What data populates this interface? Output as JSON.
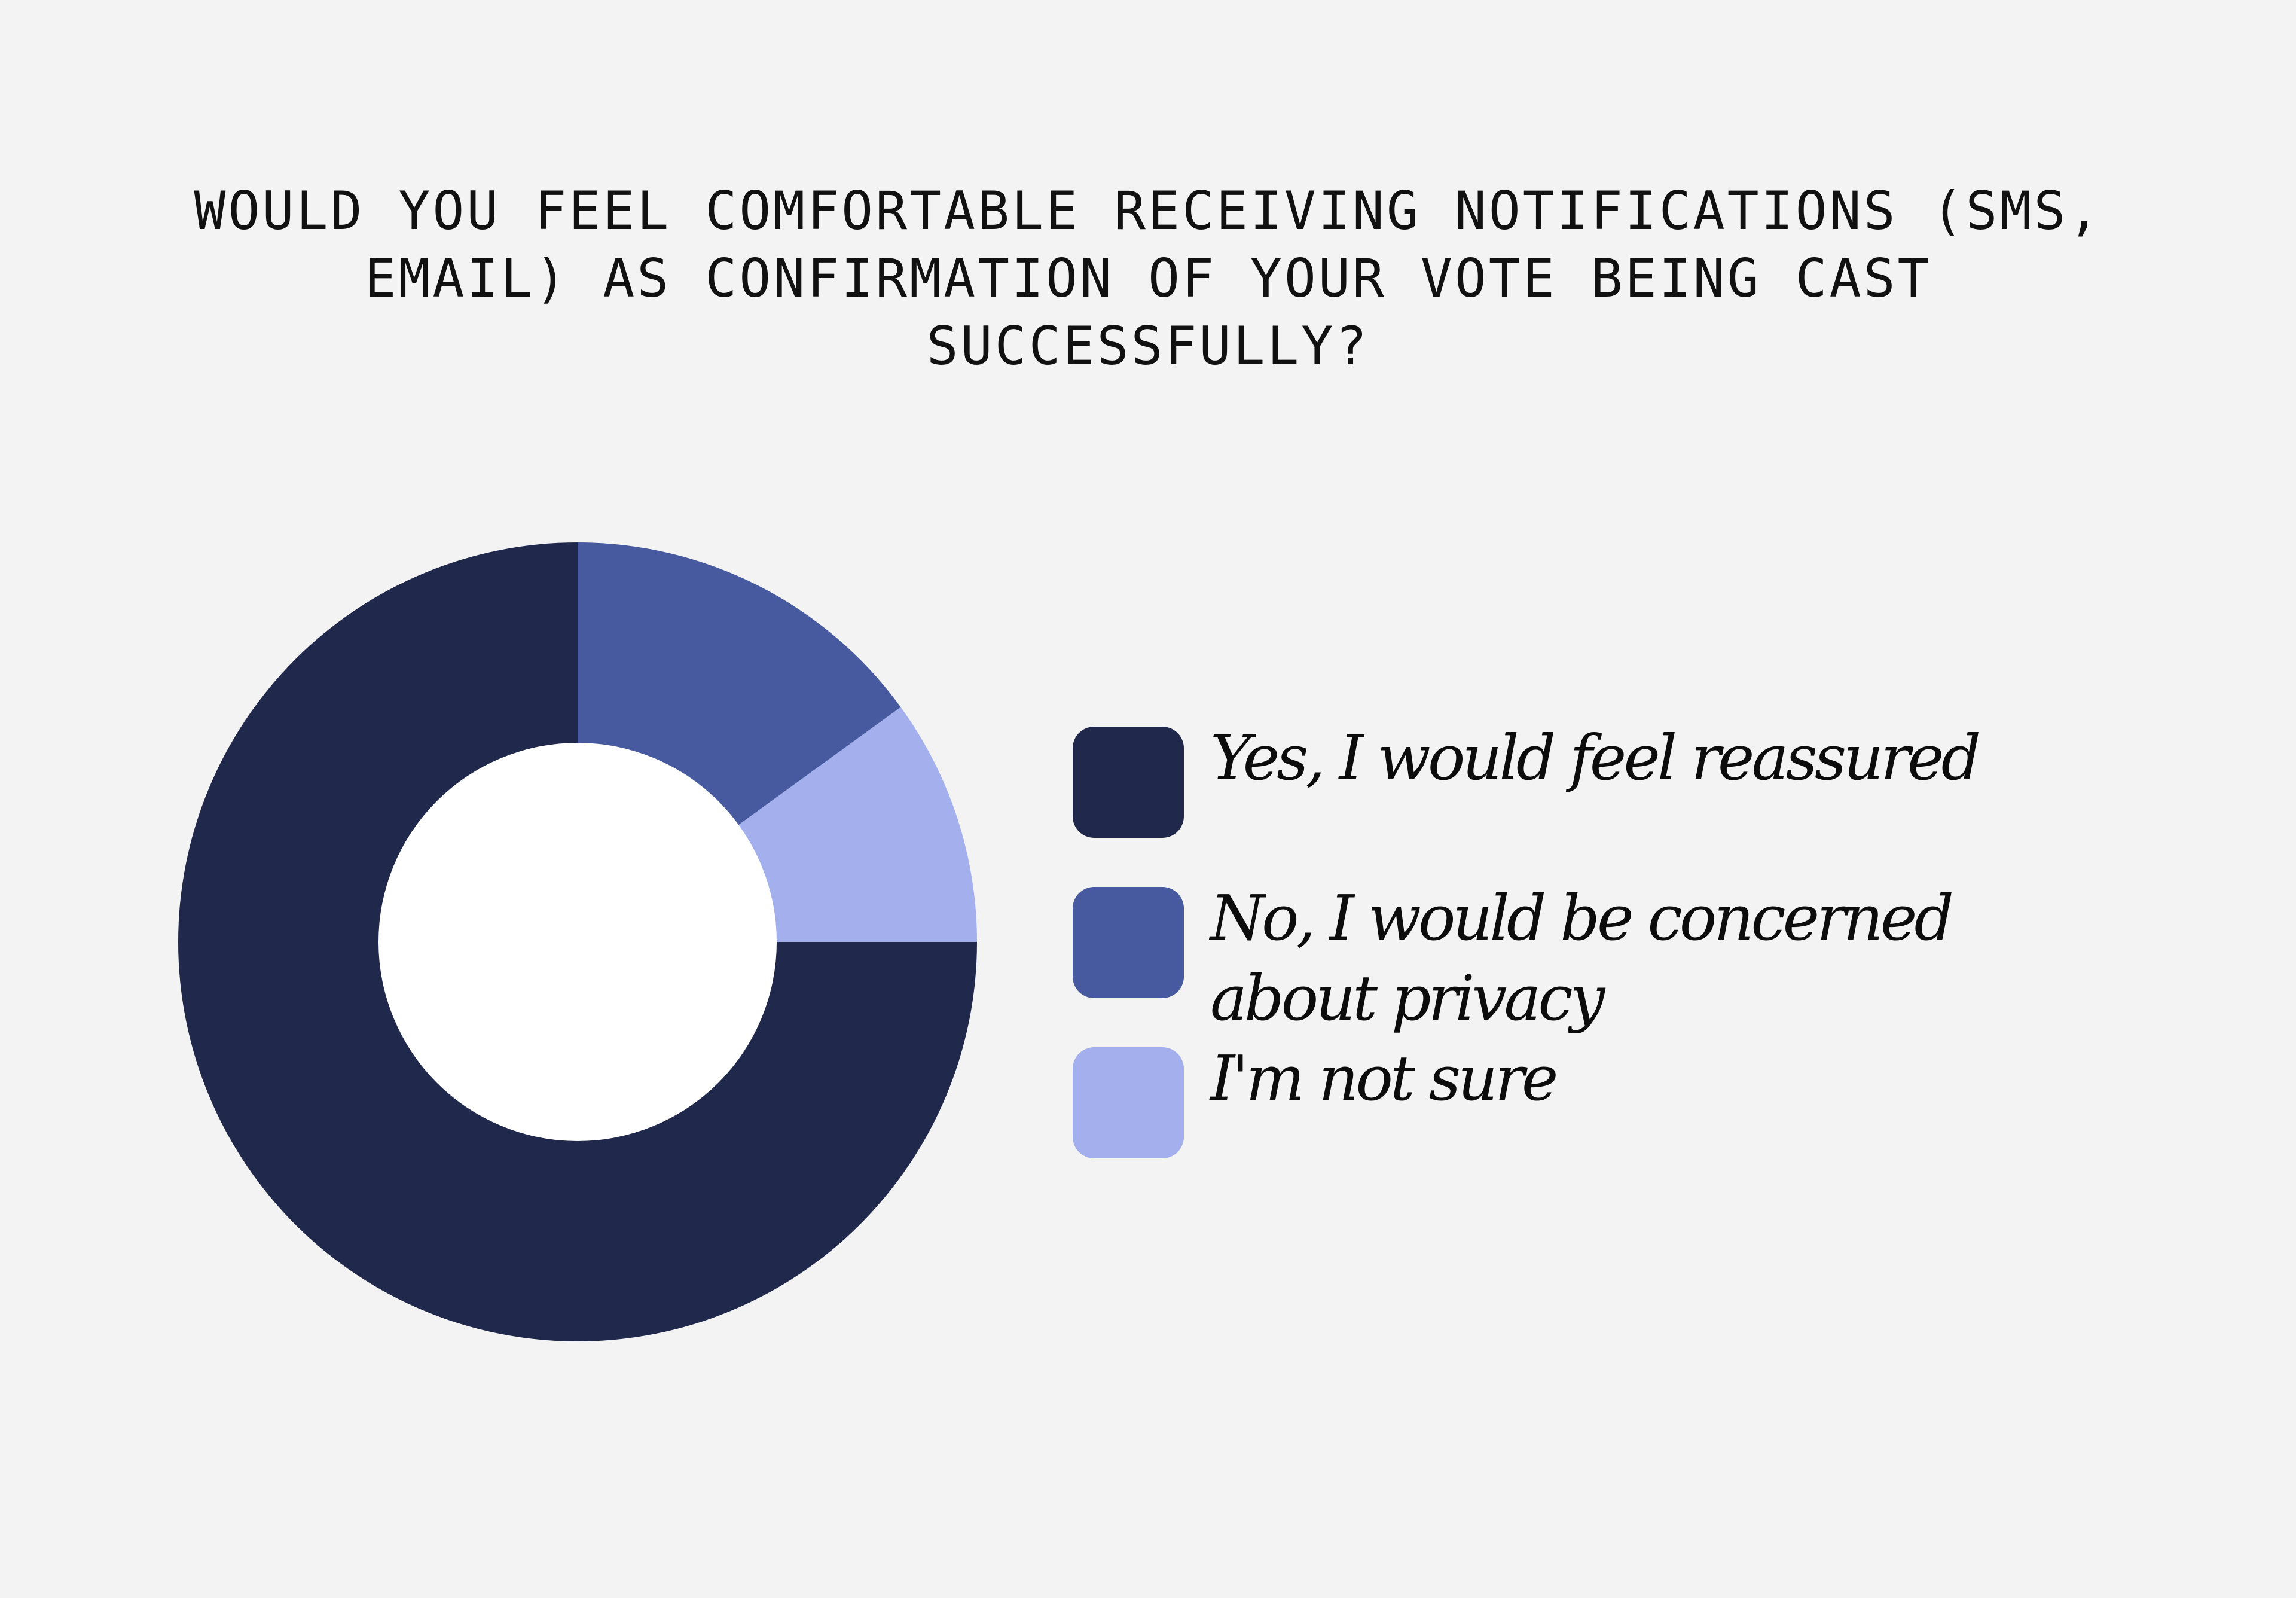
{
  "chart_data": {
    "type": "pie",
    "title": "WOULD YOU FEEL COMFORTABLE RECEIVING NOTIFICATIONS (SMS, EMAIL) AS CONFIRMATION OF YOUR VOTE BEING CAST SUCCESSFULLY?",
    "donut": true,
    "legend_position": "right",
    "series": [
      {
        "name": "Yes, I would feel reassured",
        "value": 75,
        "color": "#20284b"
      },
      {
        "name": "No, I would be concerned about privacy",
        "value": 15,
        "color": "#475aa0"
      },
      {
        "name": "I'm not sure",
        "value": 10,
        "color": "#a3b0ed"
      }
    ]
  },
  "colors": {
    "background": "#f3f3f3",
    "hole": "#ffffff"
  }
}
